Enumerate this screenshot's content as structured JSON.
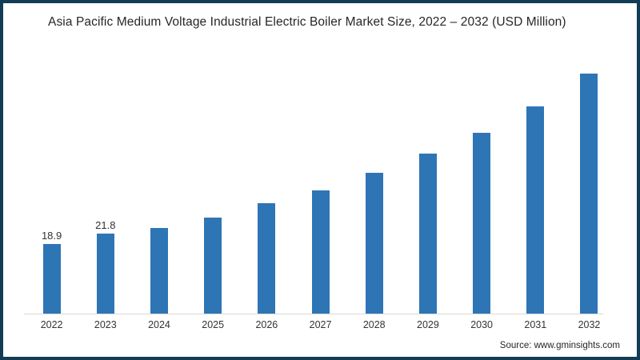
{
  "frame": {
    "border_color": "#113c55",
    "background_color": "#ffffff"
  },
  "chart_data": {
    "type": "bar",
    "title": "Asia Pacific Medium Voltage Industrial Electric Boiler Market Size, 2022 – 2032 (USD Million)",
    "categories": [
      "2022",
      "2023",
      "2024",
      "2025",
      "2026",
      "2027",
      "2028",
      "2029",
      "2030",
      "2031",
      "2032"
    ],
    "values": [
      18.9,
      21.8,
      23.3,
      26.2,
      30.1,
      33.6,
      38.4,
      43.6,
      49.3,
      56.5,
      65.4
    ],
    "data_labels": [
      "18.9",
      "21.8",
      "",
      "",
      "",
      "",
      "",
      "",
      "",
      "",
      ""
    ],
    "bar_color": "#2e75b6",
    "axis_line_color": "#d9d9d9",
    "xlabel": "",
    "ylabel": "",
    "ylim": [
      0,
      75
    ],
    "grid": false,
    "legend": "none"
  },
  "source": {
    "label": "Source: www.gminsights.com"
  }
}
